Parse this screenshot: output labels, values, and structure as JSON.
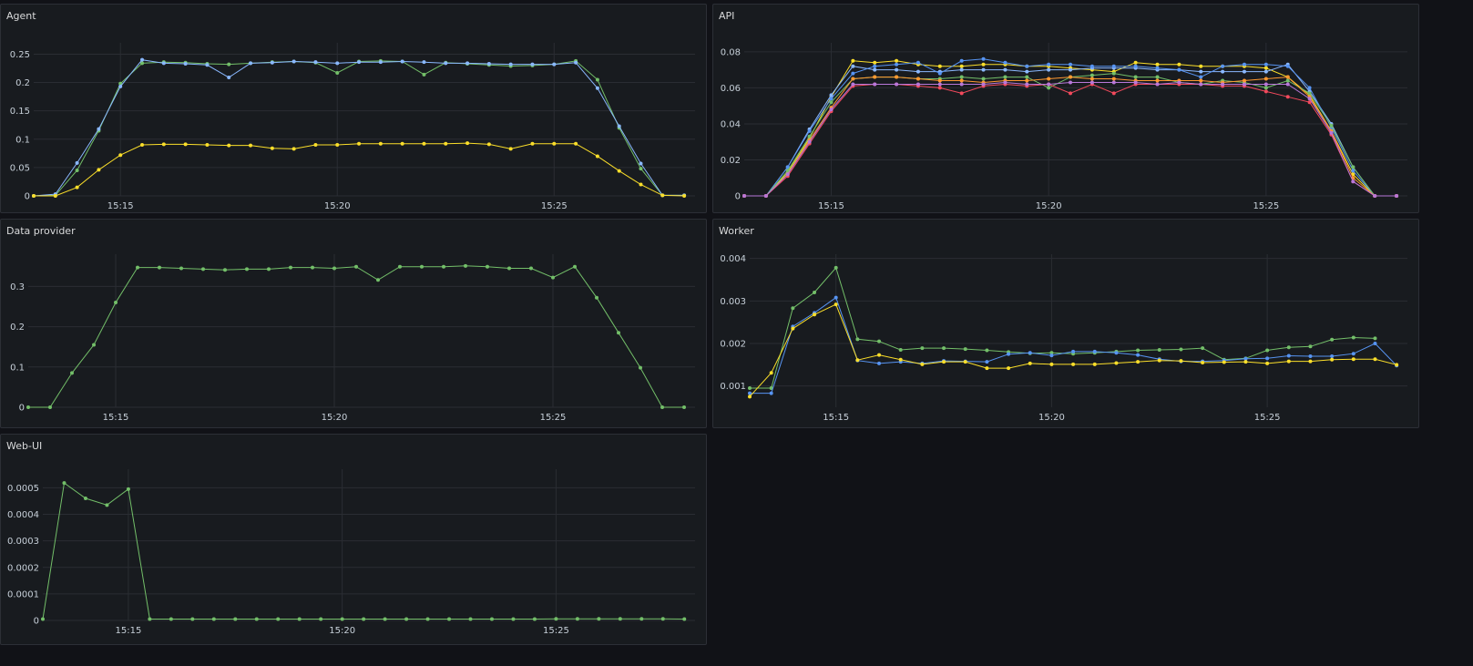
{
  "colors": {
    "green": "#73bf69",
    "blue": "#8ab8ff",
    "yellow": "#fade2a",
    "orange": "#ff9830",
    "red": "#f2495c",
    "purple": "#b877d9",
    "lightblue": "#5794f2",
    "grid": "#2a2d33",
    "text": "#c7d0d9"
  },
  "chart_data": [
    {
      "title": "Agent",
      "type": "line",
      "x_ticks": [
        "15:15",
        "15:20",
        "15:25"
      ],
      "x_tick_pos": [
        4,
        14,
        24
      ],
      "y_ticks": [
        0,
        0.05,
        0.1,
        0.15,
        0.2,
        0.25
      ],
      "ylim": [
        0,
        0.27
      ],
      "xlim": [
        0,
        30.5
      ],
      "series": [
        {
          "color": "green",
          "values": [
            0,
            0.001,
            0.045,
            0.115,
            0.198,
            0.234,
            0.236,
            0.235,
            0.233,
            0.232,
            0.234,
            0.236,
            0.237,
            0.235,
            0.217,
            0.237,
            0.238,
            0.237,
            0.214,
            0.235,
            0.233,
            0.231,
            0.229,
            0.23,
            0.232,
            0.238,
            0.205,
            0.12,
            0.048,
            0.001,
            0.001
          ]
        },
        {
          "color": "blue",
          "values": [
            0,
            0.003,
            0.058,
            0.118,
            0.193,
            0.24,
            0.234,
            0.233,
            0.231,
            0.209,
            0.234,
            0.235,
            0.237,
            0.236,
            0.234,
            0.236,
            0.236,
            0.237,
            0.236,
            0.234,
            0.234,
            0.233,
            0.232,
            0.232,
            0.232,
            0.235,
            0.19,
            0.123,
            0.057,
            0.001,
            0.001
          ]
        },
        {
          "color": "yellow",
          "values": [
            0,
            0.0,
            0.015,
            0.046,
            0.072,
            0.09,
            0.091,
            0.091,
            0.09,
            0.089,
            0.089,
            0.084,
            0.083,
            0.09,
            0.09,
            0.092,
            0.092,
            0.092,
            0.092,
            0.092,
            0.093,
            0.091,
            0.083,
            0.092,
            0.092,
            0.092,
            0.07,
            0.044,
            0.02,
            0.001,
            0.0
          ]
        }
      ]
    },
    {
      "title": "API",
      "type": "line",
      "x_ticks": [
        "15:15",
        "15:20",
        "15:25"
      ],
      "x_tick_pos": [
        4,
        14,
        24
      ],
      "y_ticks": [
        0,
        0.02,
        0.04,
        0.06,
        0.08
      ],
      "ylim": [
        0,
        0.085
      ],
      "xlim": [
        0,
        30.5
      ],
      "series": [
        {
          "color": "yellow",
          "values": [
            0,
            0,
            0.013,
            0.032,
            0.055,
            0.075,
            0.074,
            0.075,
            0.073,
            0.072,
            0.072,
            0.073,
            0.073,
            0.072,
            0.072,
            0.071,
            0.07,
            0.069,
            0.074,
            0.073,
            0.073,
            0.072,
            0.072,
            0.072,
            0.071,
            0.066,
            0.056,
            0.036,
            0.012,
            0,
            0
          ]
        },
        {
          "color": "blue",
          "values": [
            0,
            0,
            0.016,
            0.037,
            0.056,
            0.072,
            0.07,
            0.07,
            0.069,
            0.069,
            0.07,
            0.07,
            0.07,
            0.069,
            0.07,
            0.07,
            0.071,
            0.071,
            0.071,
            0.07,
            0.07,
            0.069,
            0.069,
            0.069,
            0.069,
            0.073,
            0.058,
            0.04,
            0.016,
            0,
            0
          ]
        },
        {
          "color": "lightblue",
          "values": [
            0,
            0,
            0.016,
            0.036,
            0.054,
            0.068,
            0.072,
            0.073,
            0.074,
            0.068,
            0.075,
            0.076,
            0.074,
            0.072,
            0.073,
            0.073,
            0.072,
            0.072,
            0.072,
            0.071,
            0.07,
            0.066,
            0.072,
            0.073,
            0.073,
            0.072,
            0.06,
            0.038,
            0.014,
            0,
            0
          ]
        },
        {
          "color": "green",
          "values": [
            0,
            0,
            0.014,
            0.033,
            0.052,
            0.065,
            0.066,
            0.066,
            0.065,
            0.065,
            0.066,
            0.065,
            0.066,
            0.066,
            0.06,
            0.066,
            0.067,
            0.068,
            0.066,
            0.066,
            0.063,
            0.062,
            0.064,
            0.063,
            0.06,
            0.064,
            0.057,
            0.039,
            0.016,
            0,
            0
          ]
        },
        {
          "color": "orange",
          "values": [
            0,
            0,
            0.012,
            0.031,
            0.049,
            0.065,
            0.066,
            0.066,
            0.065,
            0.064,
            0.064,
            0.063,
            0.064,
            0.064,
            0.065,
            0.066,
            0.065,
            0.065,
            0.064,
            0.064,
            0.064,
            0.064,
            0.063,
            0.064,
            0.065,
            0.066,
            0.055,
            0.036,
            0.01,
            0,
            0
          ]
        },
        {
          "color": "red",
          "values": [
            0,
            0,
            0.011,
            0.029,
            0.047,
            0.061,
            0.062,
            0.062,
            0.061,
            0.06,
            0.057,
            0.061,
            0.062,
            0.061,
            0.062,
            0.057,
            0.062,
            0.057,
            0.062,
            0.062,
            0.062,
            0.062,
            0.061,
            0.061,
            0.058,
            0.055,
            0.052,
            0.034,
            0.008,
            0,
            0
          ]
        },
        {
          "color": "purple",
          "values": [
            0,
            0,
            0.012,
            0.03,
            0.048,
            0.062,
            0.062,
            0.062,
            0.062,
            0.062,
            0.062,
            0.062,
            0.063,
            0.062,
            0.062,
            0.063,
            0.063,
            0.063,
            0.063,
            0.062,
            0.063,
            0.062,
            0.062,
            0.062,
            0.062,
            0.062,
            0.054,
            0.035,
            0.008,
            0,
            0
          ]
        }
      ]
    },
    {
      "title": "Data provider",
      "type": "line",
      "x_ticks": [
        "15:15",
        "15:20",
        "15:25"
      ],
      "x_tick_pos": [
        4,
        14,
        24
      ],
      "y_ticks": [
        0,
        0.1,
        0.2,
        0.3
      ],
      "ylim": [
        0,
        0.38
      ],
      "xlim": [
        0,
        30.5
      ],
      "series": [
        {
          "color": "green",
          "values": [
            0,
            0,
            0.085,
            0.155,
            0.26,
            0.347,
            0.347,
            0.345,
            0.343,
            0.341,
            0.343,
            0.343,
            0.347,
            0.347,
            0.345,
            0.349,
            0.316,
            0.349,
            0.349,
            0.349,
            0.351,
            0.349,
            0.345,
            0.345,
            0.322,
            0.349,
            0.272,
            0.185,
            0.098,
            0,
            0
          ]
        }
      ]
    },
    {
      "title": "Worker",
      "type": "line",
      "x_ticks": [
        "15:15",
        "15:20",
        "15:25"
      ],
      "x_tick_pos": [
        4,
        14,
        24
      ],
      "y_ticks": [
        0.001,
        0.002,
        0.003,
        0.004
      ],
      "ylim": [
        0.0005,
        0.0041
      ],
      "xlim": [
        0,
        30.5
      ],
      "series": [
        {
          "color": "green",
          "values": [
            0.00095,
            0.00095,
            0.00283,
            0.0032,
            0.00378,
            0.0021,
            0.00205,
            0.00185,
            0.00189,
            0.00189,
            0.00187,
            0.00184,
            0.0018,
            0.00177,
            0.00178,
            0.00176,
            0.00178,
            0.00181,
            0.00184,
            0.00185,
            0.00186,
            0.00189,
            0.00162,
            0.00165,
            0.00184,
            0.00191,
            0.00193,
            0.00209,
            0.00214,
            0.00212,
            null
          ]
        },
        {
          "color": "lightblue",
          "values": [
            0.00083,
            0.00083,
            0.0024,
            0.00272,
            0.00308,
            0.0016,
            0.00153,
            0.00157,
            0.00153,
            0.00159,
            0.00158,
            0.00157,
            0.00175,
            0.00178,
            0.00172,
            0.00181,
            0.00181,
            0.00178,
            0.00173,
            0.00163,
            0.00158,
            0.00158,
            0.0016,
            0.00164,
            0.00165,
            0.00171,
            0.0017,
            0.0017,
            0.00176,
            0.002,
            0.00148
          ]
        },
        {
          "color": "yellow",
          "values": [
            0.00075,
            0.00131,
            0.00235,
            0.00268,
            0.00292,
            0.00161,
            0.00173,
            0.00162,
            0.00151,
            0.00157,
            0.00157,
            0.00142,
            0.00142,
            0.00153,
            0.00151,
            0.00151,
            0.00151,
            0.00154,
            0.00157,
            0.0016,
            0.00159,
            0.00155,
            0.00156,
            0.00157,
            0.00153,
            0.00158,
            0.00158,
            0.00162,
            0.00163,
            0.00163,
            0.0015
          ]
        }
      ]
    },
    {
      "title": "Web-UI",
      "type": "line",
      "x_ticks": [
        "15:15",
        "15:20",
        "15:25"
      ],
      "x_tick_pos": [
        4,
        14,
        24
      ],
      "y_ticks": [
        0,
        0.0001,
        0.0002,
        0.0003,
        0.0004,
        0.0005
      ],
      "ylim": [
        0,
        0.00057
      ],
      "xlim": [
        0,
        30.5
      ],
      "series": [
        {
          "color": "green",
          "values": [
            5e-06,
            0.000518,
            0.00046,
            0.000435,
            0.000495,
            5e-06,
            5e-06,
            5e-06,
            5e-06,
            5e-06,
            5e-06,
            5e-06,
            5e-06,
            5e-06,
            5e-06,
            5e-06,
            5e-06,
            5e-06,
            5e-06,
            5e-06,
            5e-06,
            5e-06,
            5e-06,
            5e-06,
            6e-06,
            6e-06,
            6e-06,
            6e-06,
            6e-06,
            6e-06,
            5e-06
          ]
        }
      ]
    }
  ]
}
